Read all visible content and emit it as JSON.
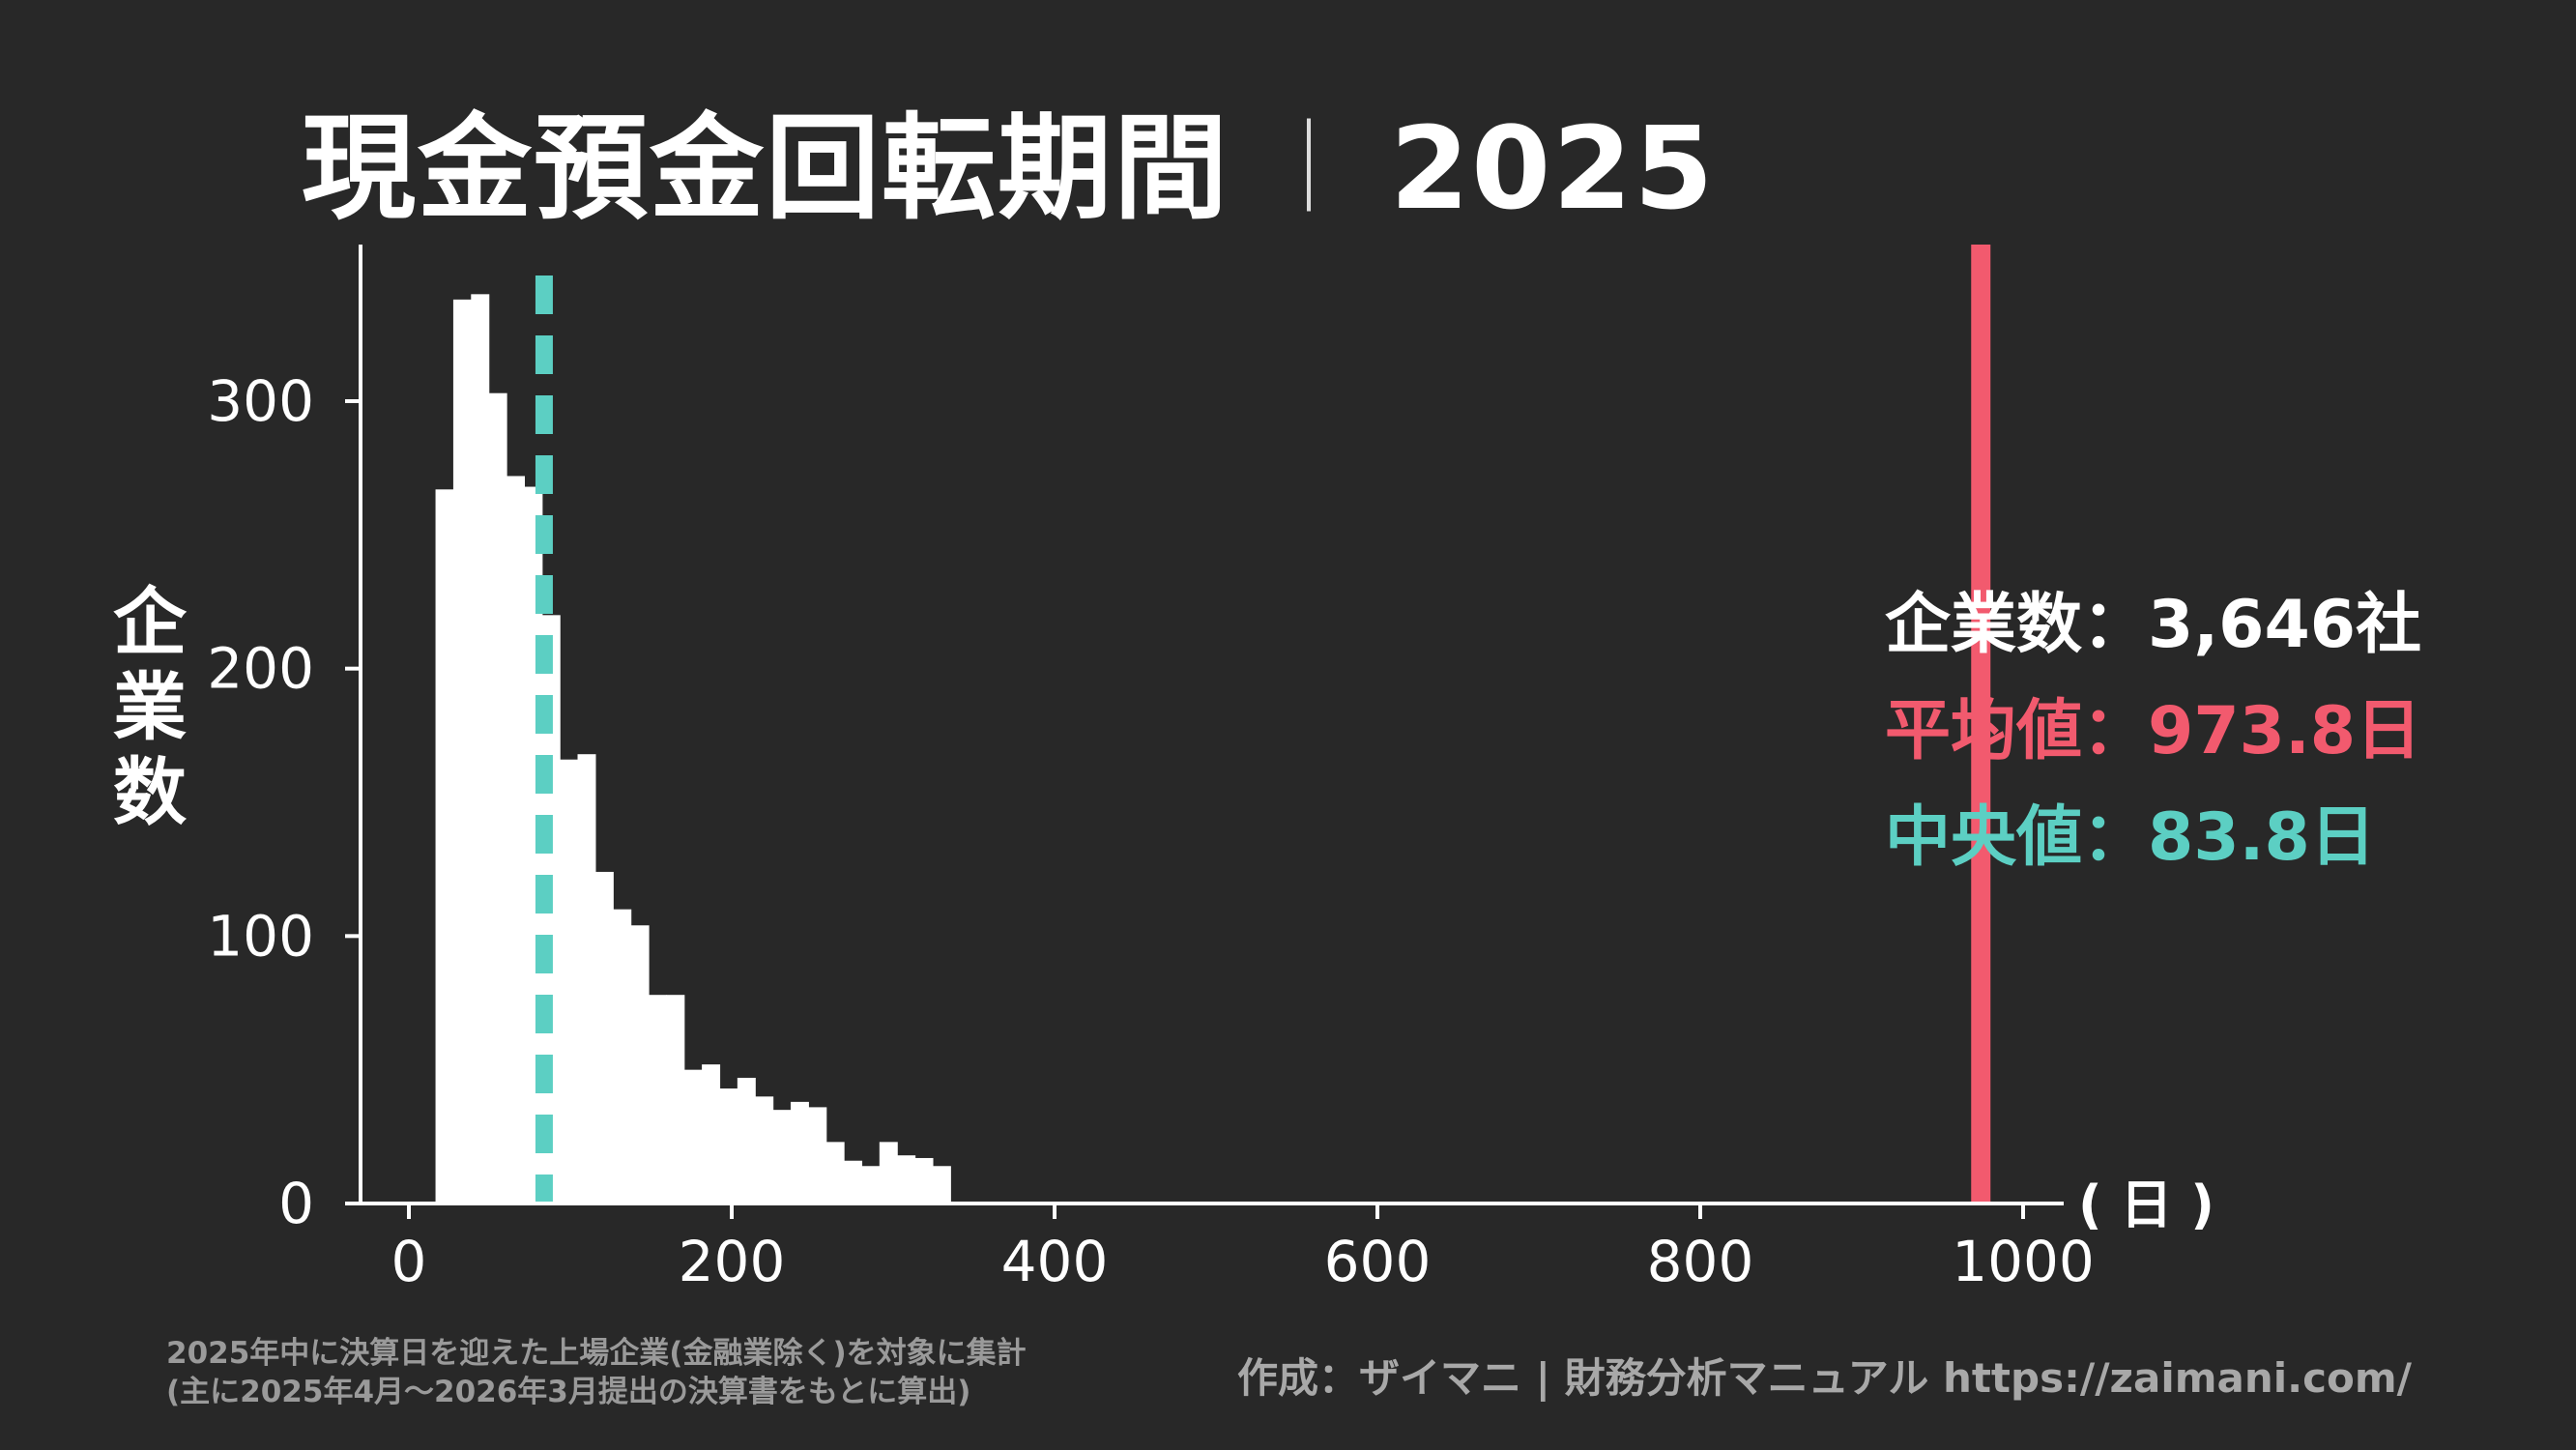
{
  "title": "現金預金回転期間",
  "title_separator": "｜",
  "title_year": "2025",
  "ylabel_chars": [
    "企",
    "業",
    "数"
  ],
  "unit_label": "( 日 )",
  "stats": {
    "count_label": "企業数",
    "count_value": "3,646社",
    "mean_label": "平均値",
    "mean_value": "973.8日",
    "median_label": "中央値",
    "median_value": "83.8日",
    "colon": "："
  },
  "note": {
    "line1": "2025年中に決算日を迎えた上場企業(金融業除く)を対象に集計",
    "line2": "(主に2025年4月～2026年3月提出の決算書をもとに算出)"
  },
  "credit": "作成：ザイマニ | 財務分析マニュアル https://zaimani.com/",
  "colors": {
    "background": "#282828",
    "bar": "#ffffff",
    "mean": "#f25a6e",
    "median": "#5ccfc3",
    "axis": "#ffffff"
  },
  "chart_data": {
    "type": "bar",
    "bin_width": 11,
    "bin_start": 16.5,
    "values": [
      267,
      338,
      340,
      303,
      272,
      268,
      220,
      166,
      168,
      124,
      110,
      104,
      78,
      78,
      50,
      52,
      43,
      47,
      40,
      35,
      38,
      36,
      23,
      16,
      14,
      23,
      18,
      17,
      14
    ],
    "mean": 973.8,
    "median": 83.8,
    "xlim": [
      -30,
      1030
    ],
    "ylim": [
      0,
      355
    ],
    "xticks": [
      0,
      200,
      400,
      600,
      800,
      1000
    ],
    "yticks": [
      0,
      100,
      200,
      300
    ],
    "grid": false
  }
}
